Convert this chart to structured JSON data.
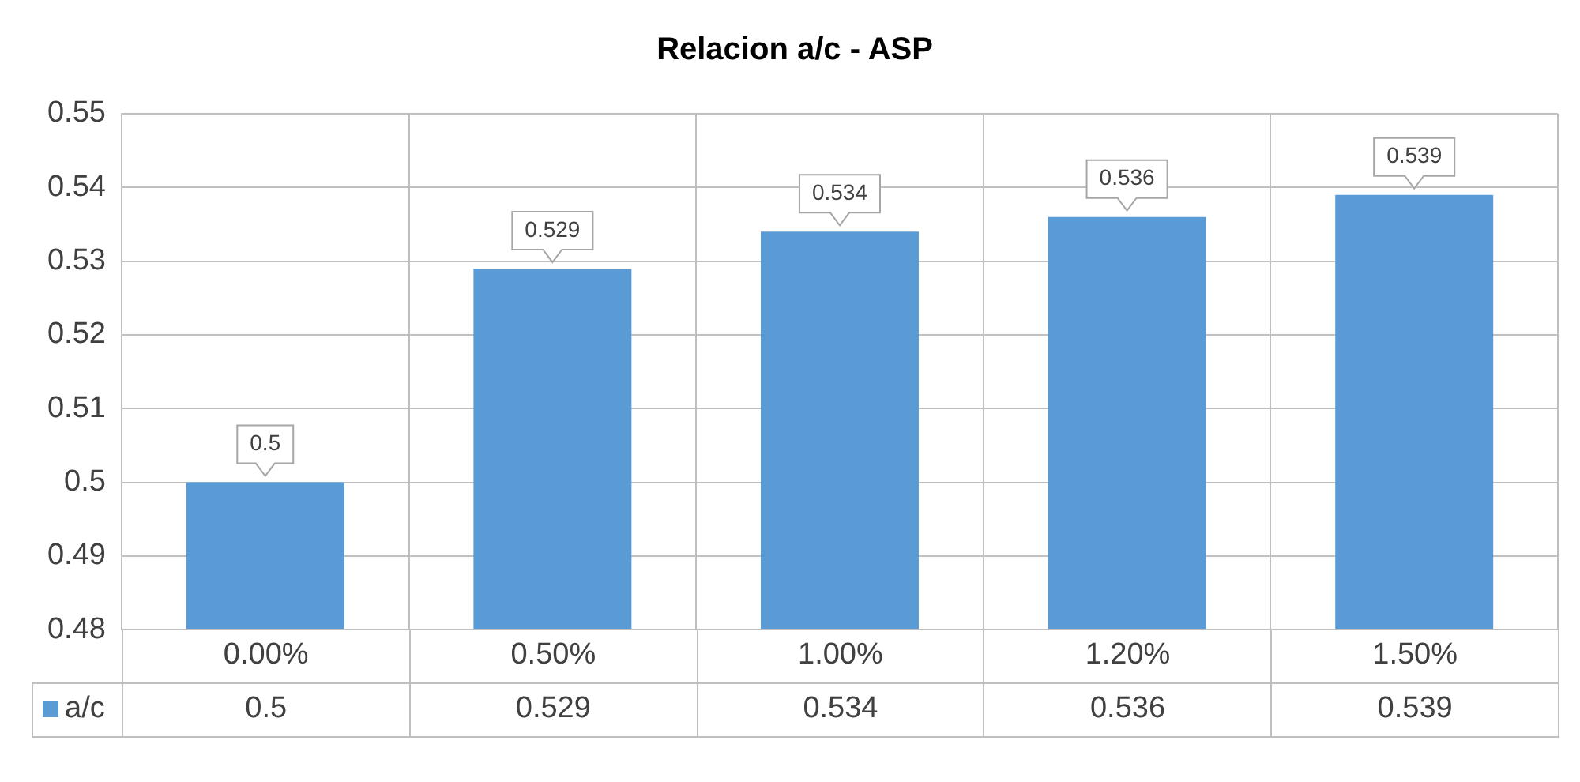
{
  "chart_data": {
    "type": "bar",
    "title": "Relacion a/c - ASP",
    "categories": [
      "0.00%",
      "0.50%",
      "1.00%",
      "1.20%",
      "1.50%"
    ],
    "series": [
      {
        "name": "a/c",
        "color": "#5b9bd5",
        "values": [
          0.5,
          0.529,
          0.534,
          0.536,
          0.539
        ]
      }
    ],
    "annotations": [
      "0.5",
      "0.529",
      "0.534",
      "0.536",
      "0.539"
    ],
    "ylim": [
      0.48,
      0.55
    ],
    "yticks": [
      0.48,
      0.49,
      0.5,
      0.51,
      0.52,
      0.53,
      0.54,
      0.55
    ],
    "grid": true,
    "legend": "bottom",
    "data_labels": true
  }
}
